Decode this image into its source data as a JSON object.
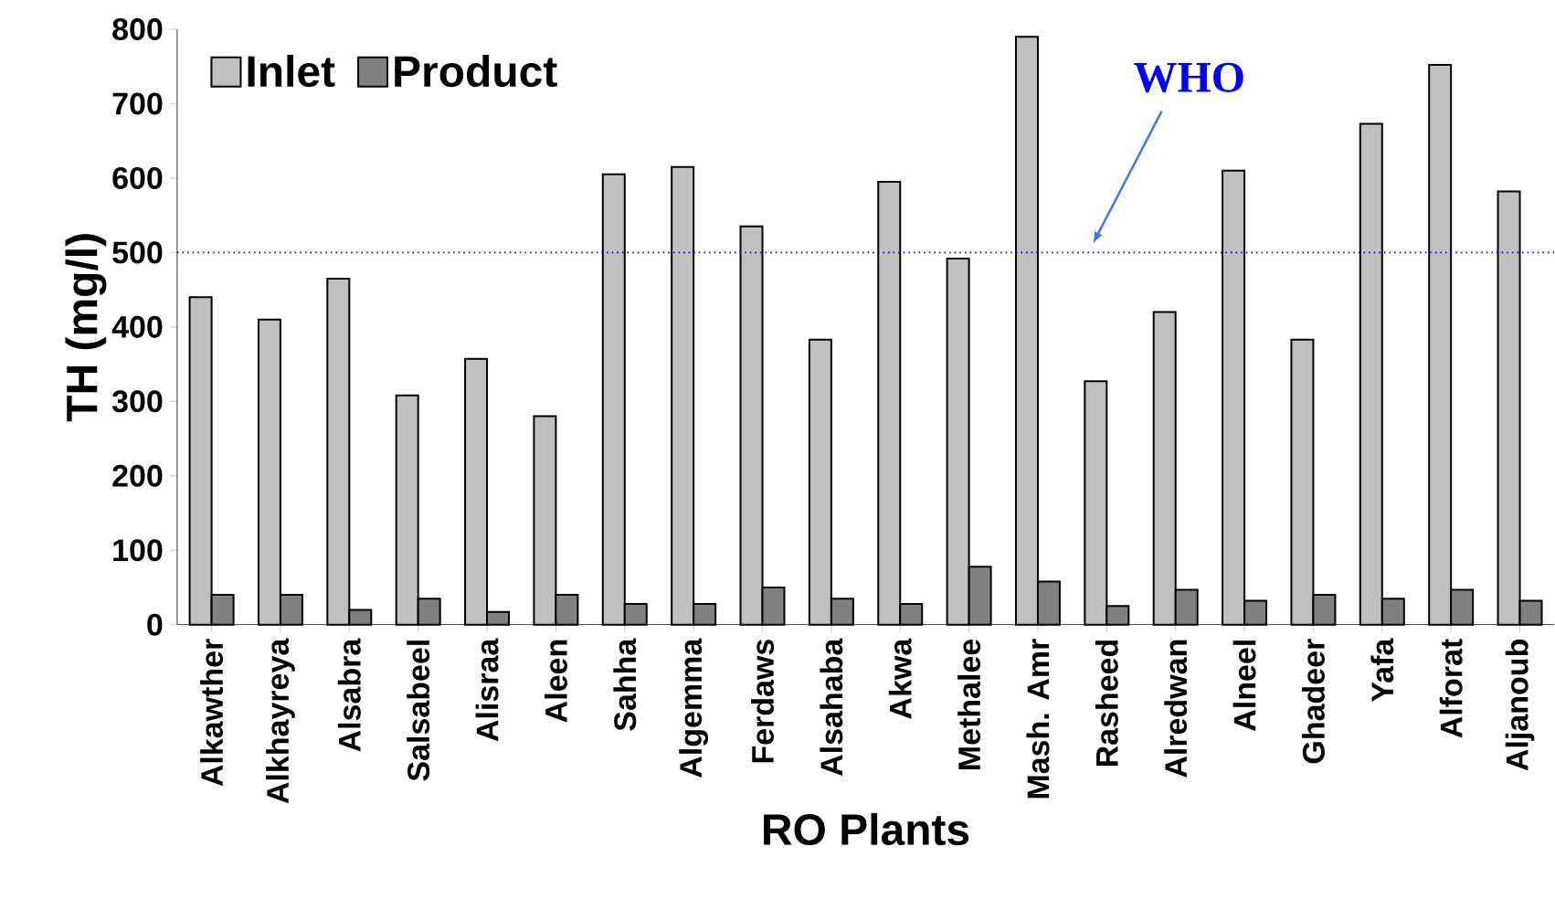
{
  "chart_data": {
    "type": "bar",
    "xlabel": "RO Plants",
    "ylabel": "TH (mg/l)",
    "categories": [
      "Alkawther",
      "Alkhayreya",
      "Alsabra",
      "Salsabeel",
      "Alisraa",
      "Aleen",
      "Sahha",
      "Algemma",
      "Ferdaws",
      "Alsahaba",
      "Akwa",
      "Methalee",
      "Mash. Amr",
      "Rasheed",
      "Alredwan",
      "Alneel",
      "Ghadeer",
      "Yafa",
      "Alforat",
      "Aljanoub"
    ],
    "series": [
      {
        "name": "Inlet",
        "color": "#c0c0c0",
        "values": [
          440,
          410,
          465,
          308,
          357,
          280,
          605,
          615,
          535,
          383,
          595,
          492,
          790,
          327,
          420,
          610,
          383,
          673,
          752,
          582
        ]
      },
      {
        "name": "Product",
        "color": "#808080",
        "values": [
          40,
          40,
          20,
          35,
          17,
          40,
          28,
          28,
          50,
          35,
          28,
          78,
          58,
          25,
          47,
          32,
          40,
          35,
          47,
          32
        ]
      }
    ],
    "ylim": [
      0,
      800
    ],
    "yticks": [
      0,
      100,
      200,
      300,
      400,
      500,
      600,
      700,
      800
    ],
    "ref_lines": [
      {
        "axis": "y",
        "value": 500,
        "label": "WHO",
        "color": "#0000ff",
        "line_style": "dotted"
      }
    ],
    "legend": "top left",
    "grid": false
  }
}
